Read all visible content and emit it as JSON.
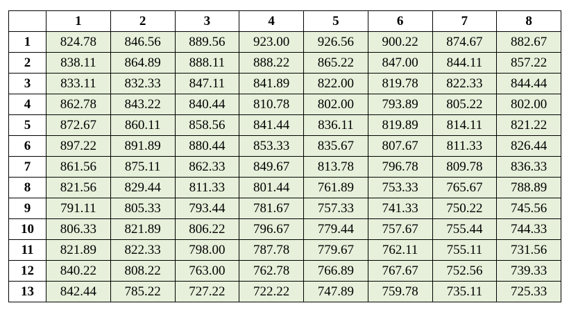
{
  "colors": {
    "cell_background": "#e6f0da",
    "header_background": "#ffffff",
    "border": "#000000"
  },
  "table": {
    "corner": "",
    "columns": [
      "1",
      "2",
      "3",
      "4",
      "5",
      "6",
      "7",
      "8"
    ],
    "rows": [
      {
        "label": "1",
        "values": [
          "824.78",
          "846.56",
          "889.56",
          "923.00",
          "926.56",
          "900.22",
          "874.67",
          "882.67"
        ]
      },
      {
        "label": "2",
        "values": [
          "838.11",
          "864.89",
          "888.11",
          "888.22",
          "865.22",
          "847.00",
          "844.11",
          "857.22"
        ]
      },
      {
        "label": "3",
        "values": [
          "833.11",
          "832.33",
          "847.11",
          "841.89",
          "822.00",
          "819.78",
          "822.33",
          "844.44"
        ]
      },
      {
        "label": "4",
        "values": [
          "862.78",
          "843.22",
          "840.44",
          "810.78",
          "802.00",
          "793.89",
          "805.22",
          "802.00"
        ]
      },
      {
        "label": "5",
        "values": [
          "872.67",
          "860.11",
          "858.56",
          "841.44",
          "836.11",
          "819.89",
          "814.11",
          "821.22"
        ]
      },
      {
        "label": "6",
        "values": [
          "897.22",
          "891.89",
          "880.44",
          "853.33",
          "835.67",
          "807.67",
          "811.33",
          "826.44"
        ]
      },
      {
        "label": "7",
        "values": [
          "861.56",
          "875.11",
          "862.33",
          "849.67",
          "813.78",
          "796.78",
          "809.78",
          "836.33"
        ]
      },
      {
        "label": "8",
        "values": [
          "821.56",
          "829.44",
          "811.33",
          "801.44",
          "761.89",
          "753.33",
          "765.67",
          "788.89"
        ]
      },
      {
        "label": "9",
        "values": [
          "791.11",
          "805.33",
          "793.44",
          "781.67",
          "757.33",
          "741.33",
          "750.22",
          "745.56"
        ]
      },
      {
        "label": "10",
        "values": [
          "806.33",
          "821.89",
          "806.22",
          "796.67",
          "779.44",
          "757.67",
          "755.44",
          "744.33"
        ]
      },
      {
        "label": "11",
        "values": [
          "821.89",
          "822.33",
          "798.00",
          "787.78",
          "779.67",
          "762.11",
          "755.11",
          "731.56"
        ]
      },
      {
        "label": "12",
        "values": [
          "840.22",
          "808.22",
          "763.00",
          "762.78",
          "766.89",
          "767.67",
          "752.56",
          "739.33"
        ]
      },
      {
        "label": "13",
        "values": [
          "842.44",
          "785.22",
          "727.22",
          "722.22",
          "747.89",
          "759.78",
          "735.11",
          "725.33"
        ]
      }
    ]
  }
}
